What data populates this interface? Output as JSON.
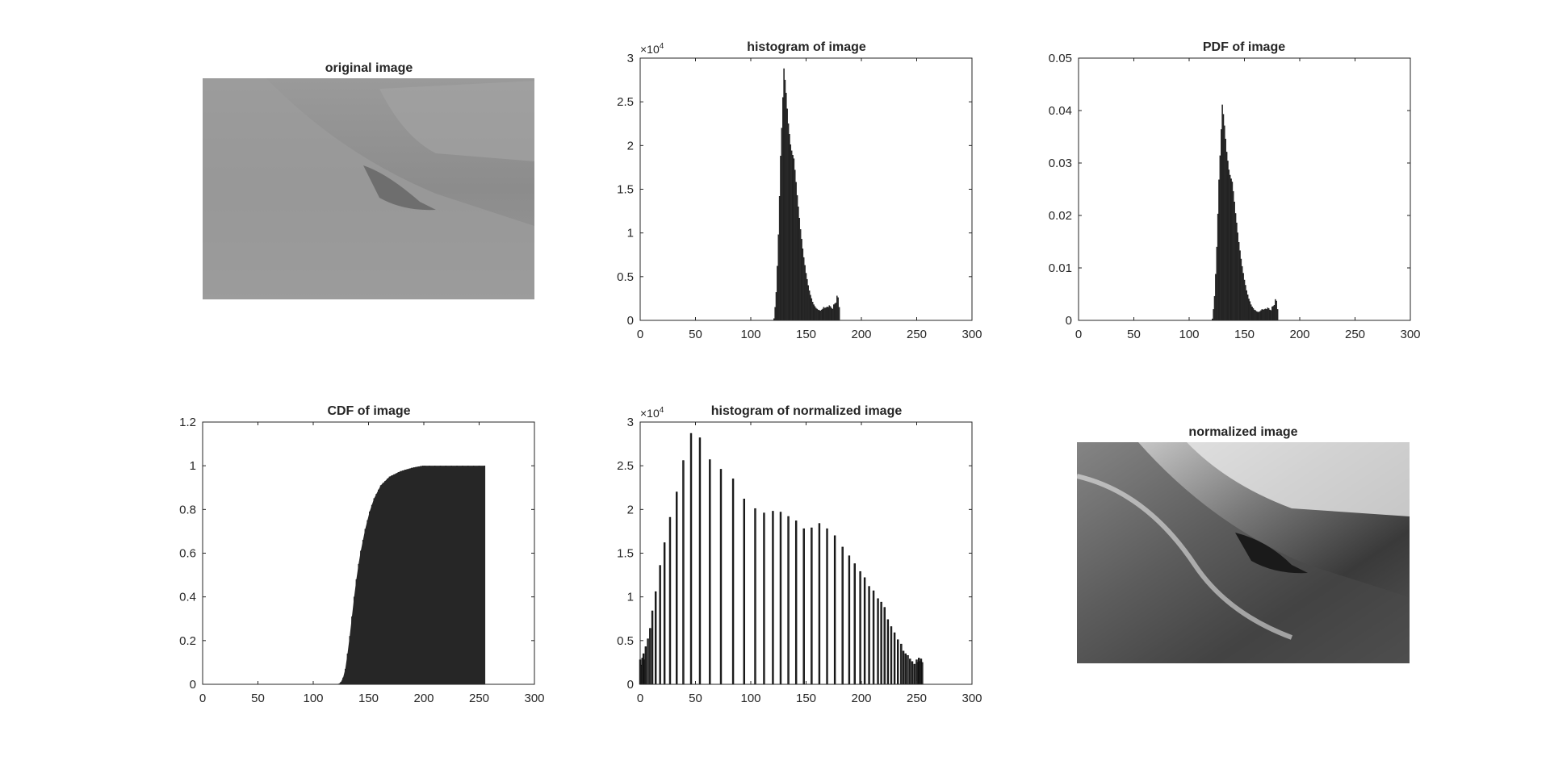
{
  "figure": {
    "panels": [
      {
        "title": "original image"
      },
      {
        "title": "histogram of image"
      },
      {
        "title": "PDF of image"
      },
      {
        "title": "CDF of image"
      },
      {
        "title": "histogram of normalized image"
      },
      {
        "title": "normalized image"
      }
    ],
    "exponent_label": "×10",
    "exponent_power": "4"
  },
  "chart_data": [
    {
      "type": "bar",
      "title": "histogram of image",
      "xlabel": "",
      "ylabel": "",
      "xlim": [
        0,
        300
      ],
      "ylim": [
        0,
        30000
      ],
      "xticks": [
        0,
        50,
        100,
        150,
        200,
        250,
        300
      ],
      "yticks": [
        0,
        5000,
        10000,
        15000,
        20000,
        25000,
        30000
      ],
      "ytick_labels": [
        "0",
        "0.5",
        "1",
        "1.5",
        "2",
        "2.5",
        "3"
      ],
      "y_exponent": "×10^4",
      "x_start": 121,
      "values": [
        200,
        1500,
        3200,
        6200,
        9800,
        14200,
        18800,
        22000,
        25500,
        28800,
        27500,
        26000,
        24200,
        22500,
        21300,
        20100,
        19400,
        18900,
        18500,
        17200,
        15800,
        14300,
        13000,
        11700,
        10400,
        9300,
        8200,
        7200,
        6300,
        5400,
        4700,
        4000,
        3400,
        2900,
        2500,
        2100,
        1800,
        1600,
        1400,
        1300,
        1200,
        1150,
        1100,
        1200,
        1300,
        1500,
        1400,
        1450,
        1550,
        1500,
        1700,
        1600,
        1400,
        1300,
        1800,
        1900,
        2000,
        2800,
        2600,
        1500
      ]
    },
    {
      "type": "bar",
      "title": "PDF of image",
      "xlabel": "",
      "ylabel": "",
      "xlim": [
        0,
        300
      ],
      "ylim": [
        0,
        0.05
      ],
      "xticks": [
        0,
        50,
        100,
        150,
        200,
        250,
        300
      ],
      "yticks": [
        0,
        0.01,
        0.02,
        0.03,
        0.04,
        0.05
      ],
      "ytick_labels": [
        "0",
        "0.01",
        "0.02",
        "0.03",
        "0.04",
        "0.05"
      ],
      "x_start": 121,
      "values": [
        0.0003,
        0.0021,
        0.0046,
        0.0088,
        0.014,
        0.0203,
        0.0268,
        0.0314,
        0.0364,
        0.0411,
        0.0393,
        0.0371,
        0.0346,
        0.0321,
        0.0304,
        0.0287,
        0.0277,
        0.027,
        0.0264,
        0.0246,
        0.0226,
        0.0204,
        0.0186,
        0.0167,
        0.0149,
        0.0133,
        0.0117,
        0.0103,
        0.009,
        0.0077,
        0.0067,
        0.0057,
        0.0049,
        0.0041,
        0.0036,
        0.003,
        0.0026,
        0.0023,
        0.002,
        0.0019,
        0.0017,
        0.0016,
        0.0016,
        0.0017,
        0.0019,
        0.0021,
        0.002,
        0.0021,
        0.0022,
        0.0021,
        0.0024,
        0.0023,
        0.002,
        0.0019,
        0.0026,
        0.0027,
        0.0029,
        0.004,
        0.0037,
        0.0021
      ]
    },
    {
      "type": "bar",
      "title": "CDF of image",
      "xlabel": "",
      "ylabel": "",
      "xlim": [
        0,
        300
      ],
      "ylim": [
        0,
        1.2
      ],
      "xticks": [
        0,
        50,
        100,
        150,
        200,
        250,
        300
      ],
      "yticks": [
        0,
        0.2,
        0.4,
        0.6,
        0.8,
        1,
        1.2
      ],
      "ytick_labels": [
        "0",
        "0.2",
        "0.4",
        "0.6",
        "0.8",
        "1",
        "1.2"
      ],
      "x": [
        121,
        123,
        125,
        127,
        129,
        131,
        133,
        135,
        137,
        139,
        141,
        143,
        145,
        147,
        149,
        151,
        153,
        155,
        157,
        159,
        161,
        163,
        165,
        167,
        169,
        171,
        173,
        175,
        177,
        179,
        181,
        183,
        185,
        187,
        189,
        191,
        193,
        195,
        197,
        199,
        201,
        205,
        210,
        215,
        220,
        225,
        230,
        235,
        240,
        245,
        250,
        255
      ],
      "values": [
        0.0,
        0.002,
        0.01,
        0.03,
        0.07,
        0.14,
        0.22,
        0.31,
        0.4,
        0.48,
        0.55,
        0.61,
        0.66,
        0.71,
        0.75,
        0.79,
        0.82,
        0.85,
        0.87,
        0.89,
        0.91,
        0.92,
        0.93,
        0.94,
        0.95,
        0.955,
        0.96,
        0.965,
        0.97,
        0.975,
        0.978,
        0.981,
        0.984,
        0.987,
        0.99,
        0.992,
        0.994,
        0.996,
        0.998,
        1.0,
        1.0,
        1.0,
        1.0,
        1.0,
        1.0,
        1.0,
        1.0,
        1.0,
        1.0,
        1.0,
        1.0,
        1.0
      ]
    },
    {
      "type": "bar",
      "title": "histogram of normalized image",
      "xlabel": "",
      "ylabel": "",
      "xlim": [
        0,
        300
      ],
      "ylim": [
        0,
        30000
      ],
      "xticks": [
        0,
        50,
        100,
        150,
        200,
        250,
        300
      ],
      "yticks": [
        0,
        5000,
        10000,
        15000,
        20000,
        25000,
        30000
      ],
      "ytick_labels": [
        "0",
        "0.5",
        "1",
        "1.5",
        "2",
        "2.5",
        "3"
      ],
      "y_exponent": "×10^4",
      "x": [
        0,
        1,
        2,
        3,
        4,
        5,
        7,
        9,
        11,
        14,
        18,
        22,
        27,
        33,
        39,
        46,
        54,
        63,
        73,
        84,
        94,
        104,
        112,
        120,
        127,
        134,
        141,
        148,
        155,
        162,
        169,
        176,
        183,
        189,
        194,
        199,
        203,
        207,
        211,
        215,
        218,
        221,
        224,
        227,
        230,
        233,
        236,
        238,
        240,
        242,
        244,
        246,
        248,
        250,
        251,
        252,
        253,
        254,
        255
      ],
      "values": [
        2800,
        2200,
        3000,
        3500,
        2800,
        4300,
        5200,
        6400,
        8400,
        10600,
        13600,
        16200,
        19100,
        22000,
        25600,
        28700,
        28200,
        25700,
        24600,
        23500,
        21200,
        20100,
        19600,
        19800,
        19700,
        19200,
        18700,
        17800,
        17900,
        18400,
        17800,
        17000,
        15700,
        14700,
        13800,
        12900,
        12200,
        11200,
        10700,
        9800,
        9400,
        8800,
        7400,
        6600,
        5900,
        5100,
        4600,
        3800,
        3500,
        3300,
        2900,
        2600,
        2300,
        2800,
        2500,
        3000,
        2600,
        2900,
        2500
      ]
    }
  ]
}
